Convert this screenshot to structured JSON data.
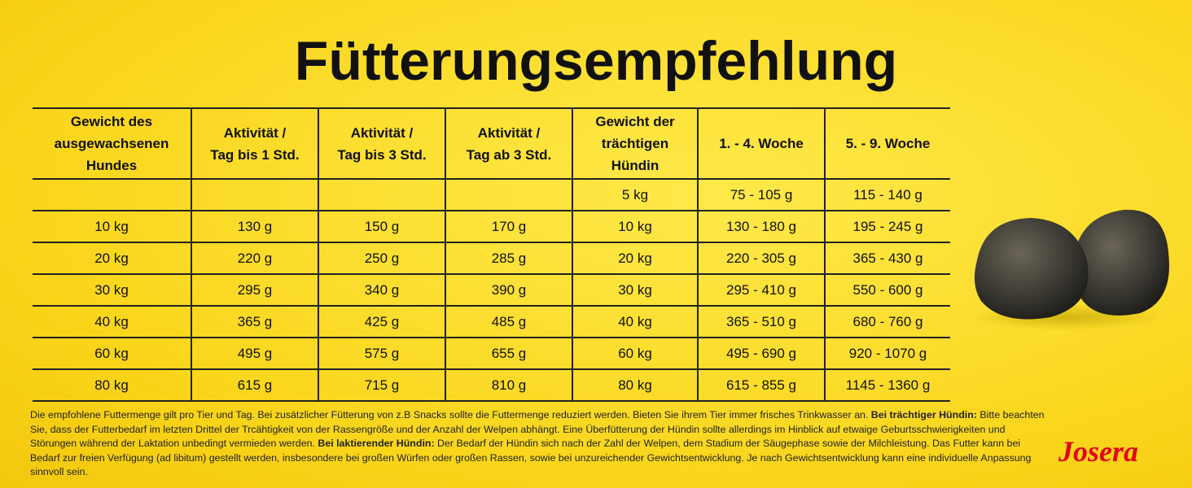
{
  "title": "Fütterungsempfehlung",
  "table": {
    "header": [
      [
        "Gewicht des",
        "ausgewachsenen",
        "Hundes"
      ],
      [
        "Aktivität /",
        "Tag bis 1 Std."
      ],
      [
        "Aktivität /",
        "Tag bis 3 Std."
      ],
      [
        "Aktivität /",
        "Tag ab 3 Std."
      ],
      [
        "Gewicht der",
        "trächtigen",
        "Hündin"
      ],
      [
        "1. - 4. Woche"
      ],
      [
        "5. - 9. Woche"
      ]
    ],
    "rows": [
      [
        null,
        null,
        null,
        null,
        "5 kg",
        "75 - 105 g",
        "115 - 140 g"
      ],
      [
        "10 kg",
        "130 g",
        "150 g",
        "170 g",
        "10 kg",
        "130 - 180 g",
        "195 - 245 g"
      ],
      [
        "20 kg",
        "220 g",
        "250 g",
        "285 g",
        "20 kg",
        "220 - 305 g",
        "365 - 430 g"
      ],
      [
        "30 kg",
        "295 g",
        "340 g",
        "390 g",
        "30 kg",
        "295 - 410 g",
        "550 - 600 g"
      ],
      [
        "40 kg",
        "365 g",
        "425 g",
        "485 g",
        "40 kg",
        "365 - 510 g",
        "680 - 760 g"
      ],
      [
        "60 kg",
        "495 g",
        "575 g",
        "655 g",
        "60 kg",
        "495 - 690 g",
        "920 - 1070 g"
      ],
      [
        "80 kg",
        "615 g",
        "715 g",
        "810 g",
        "80 kg",
        "615 - 855 g",
        "1145 - 1360 g"
      ]
    ]
  },
  "footnote": [
    {
      "text": "Die empfohlene Futtermenge gilt pro Tier und Tag. Bei zusätzlicher Fütterung von z.B Snacks sollte die Futtermenge reduziert werden. Bieten Sie ihrem Tier immer frisches Trinkwasser an. ",
      "bold": false
    },
    {
      "text": "Bei trächtiger Hündin:",
      "bold": true
    },
    {
      "text": " Bitte beachten Sie, dass der Futterbedarf im letzten Drittel der Trcähtigkeit von der Rassengröße und der Anzahl der Welpen abhängt. Eine Überfütterung der Hündin sollte allerdings im Hinblick auf etwaige Geburtsschwierigkeiten und Störungen während der Laktation unbedingt vermieden werden. ",
      "bold": false
    },
    {
      "text": "Bei laktierender Hündin:",
      "bold": true
    },
    {
      "text": " Der Bedarf der Hündin sich nach der Zahl der Welpen, dem Stadium der Säugephase sowie der Milchleistung. Das Futter kann bei Bedarf zur freien Verfügung (ad libitum) gestellt werden, insbesondere bei großen Würfen oder großen Rassen, sowie bei unzureichender Gewichtsentwicklung. Je nach Gewichtsentwicklung kann eine individuelle Anpassung sinnvoll sein.",
      "bold": false
    }
  ],
  "logo": "Josera"
}
